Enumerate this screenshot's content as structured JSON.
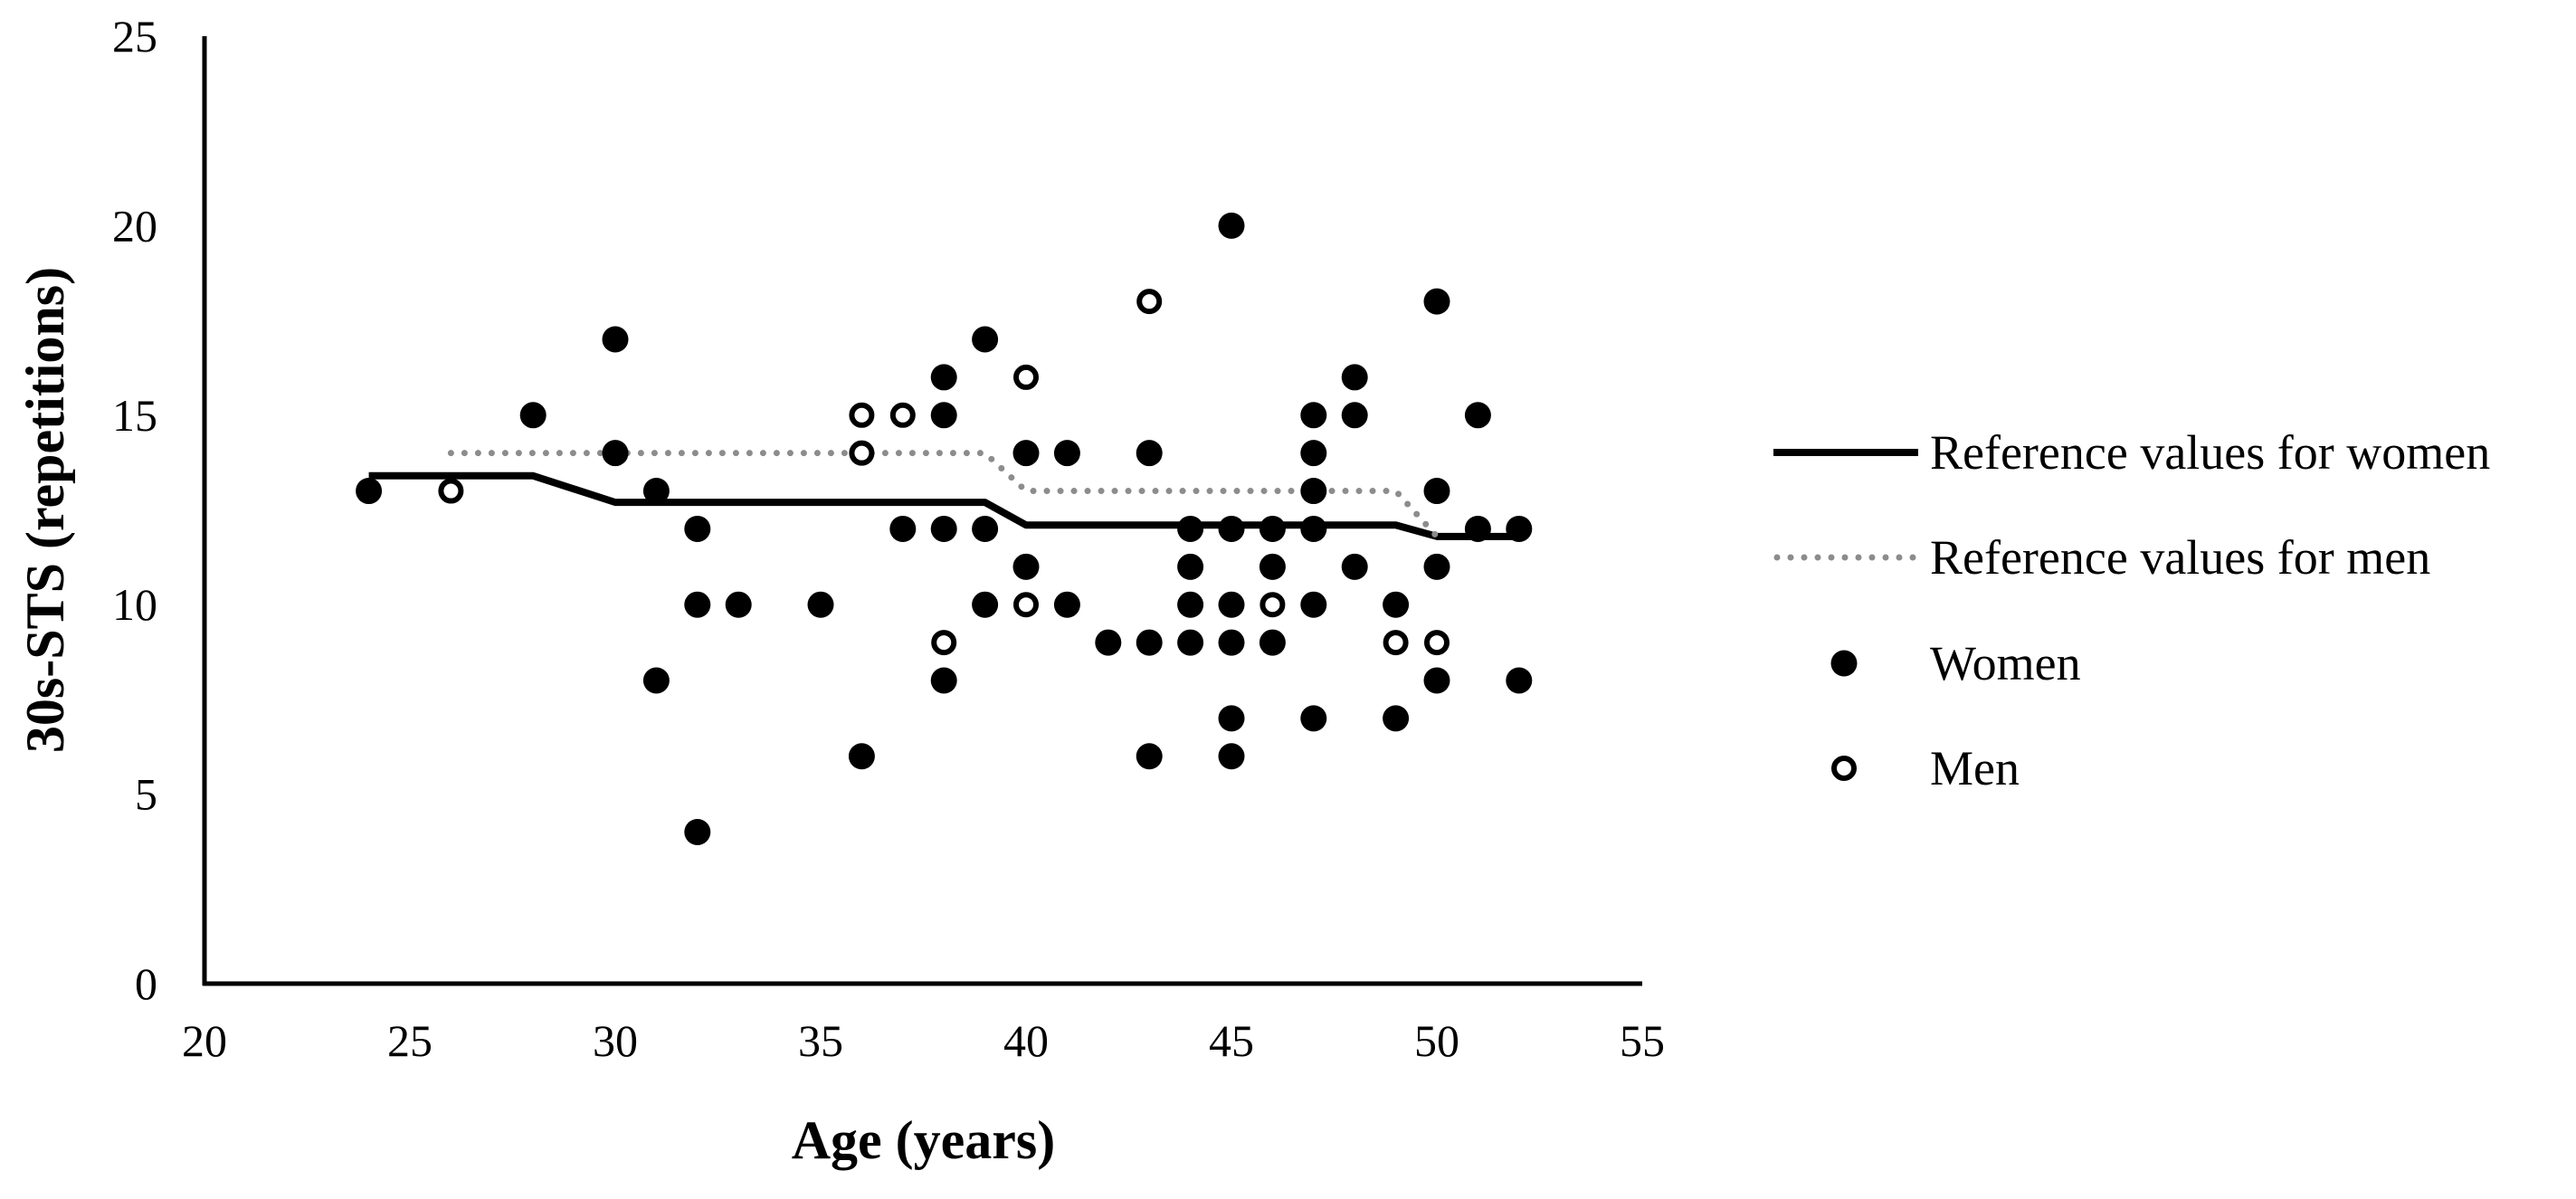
{
  "chart_data": {
    "type": "scatter",
    "xlabel": "Age (years)",
    "ylabel": "30s-STS (repetitions)",
    "xlim": [
      20,
      55
    ],
    "ylim": [
      0,
      25
    ],
    "x_ticks": [
      "20",
      "25",
      "30",
      "35",
      "40",
      "45",
      "50",
      "55"
    ],
    "y_ticks": [
      "0",
      "5",
      "10",
      "15",
      "20",
      "25"
    ],
    "grid": false,
    "legend_position": "right",
    "series": [
      {
        "name": "Reference values for women",
        "kind": "line",
        "style": "solid",
        "color": "#000000",
        "points": [
          [
            24,
            13.4
          ],
          [
            28,
            13.4
          ],
          [
            30,
            12.7
          ],
          [
            39,
            12.7
          ],
          [
            40,
            12.1
          ],
          [
            49,
            12.1
          ],
          [
            50,
            11.8
          ],
          [
            52,
            11.8
          ]
        ]
      },
      {
        "name": "Reference values for men",
        "kind": "line",
        "style": "dotted",
        "color": "#8c8c8c",
        "points": [
          [
            26,
            14
          ],
          [
            39,
            14
          ],
          [
            40,
            13
          ],
          [
            49,
            13
          ],
          [
            50,
            11.8
          ]
        ]
      },
      {
        "name": "Women",
        "kind": "scatter",
        "marker": "filled",
        "color": "#000000",
        "points": [
          [
            24,
            13
          ],
          [
            28,
            15
          ],
          [
            30,
            17
          ],
          [
            30,
            14
          ],
          [
            31,
            13
          ],
          [
            31,
            8
          ],
          [
            32,
            12
          ],
          [
            32,
            10
          ],
          [
            32,
            4
          ],
          [
            33,
            10
          ],
          [
            35,
            10
          ],
          [
            36,
            6
          ],
          [
            37,
            12
          ],
          [
            38,
            16
          ],
          [
            38,
            15
          ],
          [
            38,
            12
          ],
          [
            38,
            8
          ],
          [
            39,
            17
          ],
          [
            39,
            12
          ],
          [
            39,
            10
          ],
          [
            40,
            14
          ],
          [
            40,
            11
          ],
          [
            41,
            14
          ],
          [
            41,
            10
          ],
          [
            42,
            9
          ],
          [
            43,
            14
          ],
          [
            43,
            9
          ],
          [
            43,
            6
          ],
          [
            44,
            12
          ],
          [
            44,
            11
          ],
          [
            44,
            10
          ],
          [
            44,
            9
          ],
          [
            45,
            20
          ],
          [
            45,
            12
          ],
          [
            45,
            10
          ],
          [
            45,
            9
          ],
          [
            45,
            7
          ],
          [
            45,
            6
          ],
          [
            46,
            12
          ],
          [
            46,
            11
          ],
          [
            46,
            9
          ],
          [
            47,
            15
          ],
          [
            47,
            14
          ],
          [
            47,
            13
          ],
          [
            47,
            12
          ],
          [
            47,
            10
          ],
          [
            47,
            7
          ],
          [
            48,
            16
          ],
          [
            48,
            15
          ],
          [
            48,
            11
          ],
          [
            49,
            10
          ],
          [
            49,
            7
          ],
          [
            50,
            18
          ],
          [
            50,
            13
          ],
          [
            50,
            11
          ],
          [
            50,
            8
          ],
          [
            51,
            15
          ],
          [
            51,
            12
          ],
          [
            52,
            12
          ],
          [
            52,
            8
          ]
        ]
      },
      {
        "name": "Men",
        "kind": "scatter",
        "marker": "open",
        "color": "#000000",
        "points": [
          [
            26,
            13
          ],
          [
            36,
            15
          ],
          [
            36,
            14
          ],
          [
            37,
            15
          ],
          [
            38,
            9
          ],
          [
            40,
            16
          ],
          [
            40,
            10
          ],
          [
            43,
            18
          ],
          [
            46,
            10
          ],
          [
            49,
            9
          ],
          [
            50,
            9
          ]
        ]
      }
    ]
  }
}
